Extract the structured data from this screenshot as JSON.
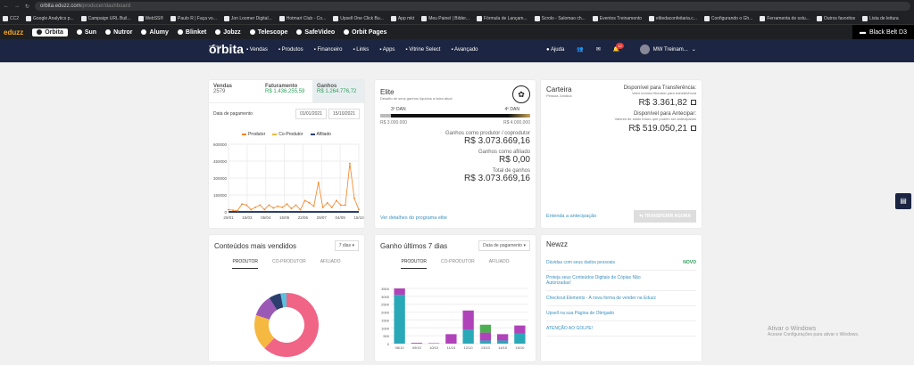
{
  "browser": {
    "url_host": "orbita.eduzz.com",
    "url_path": "/producer/dashboard"
  },
  "bookmarks": [
    "CC2",
    "Google Analytics p...",
    "Campaign URL Buil...",
    "WebSS®",
    "Paulo R | Faça vo...",
    "Jon Loomer Digital...",
    "Hotmart Club - Co...",
    "Upsell One Click Bu...",
    "App mkt",
    "Meu Painel | Bilder...",
    "Fórmula de Lançam...",
    "Scrolo - Salomao ch...",
    "Eventos Treinamento",
    "elitedaconfeitaria.c...",
    "Configurando o Gh...",
    "Ferramenta de solu...",
    "Outros favoritos",
    "Lista de leitura"
  ],
  "appbar": {
    "logo": "eduzz",
    "items": [
      "Órbita",
      "Sun",
      "Nutror",
      "Alumy",
      "Blinket",
      "Jobzz",
      "Telescope",
      "SafeVideo",
      "Orbit Pages"
    ],
    "right": "Black Belt D3"
  },
  "header": {
    "brand_small": "myEduzz",
    "brand": "órbita",
    "nav": [
      "Vendas",
      "Produtos",
      "Financeiro",
      "Links",
      "Apps",
      "Vitrine Select",
      "Avançado"
    ],
    "help": "Ajuda",
    "notif_count": "12",
    "user": "MW Treinam..."
  },
  "sales": {
    "tabs": [
      {
        "label": "Vendas",
        "value": "2579"
      },
      {
        "label": "Faturamento",
        "value": "R$ 1.436.255,59"
      },
      {
        "label": "Ganhos",
        "value": "R$ 1.264.776,72"
      }
    ],
    "date_label": "Data de pagamento",
    "date_from": "01/01/2021",
    "date_to": "15/10/2021"
  },
  "chart_data": {
    "type": "line",
    "series": [
      {
        "name": "Produtor",
        "values": [
          20,
          15,
          10,
          70,
          60,
          20,
          40,
          60,
          20,
          60,
          35,
          50,
          40,
          70,
          30,
          60,
          20,
          100,
          80,
          50,
          260,
          40,
          80,
          40,
          100,
          60,
          60,
          430,
          120,
          20
        ]
      },
      {
        "name": "Co-Produtor",
        "values": []
      },
      {
        "name": "Afiliado",
        "values": []
      }
    ],
    "x_ticks": [
      "20/01",
      "15/03",
      "05/04",
      "15/05",
      "22/06",
      "29/07",
      "04/09",
      "15/10"
    ],
    "y_ticks": [
      "0",
      "150000",
      "300000",
      "450000",
      "600000"
    ],
    "ylim": [
      0,
      600000
    ],
    "colors": {
      "Produtor": "#f58220",
      "Co-Produtor": "#f5b841",
      "Afiliado": "#2c3e6e"
    }
  },
  "elite": {
    "title": "Elite",
    "subtitle": "Desafio de seus ganhos líquidos a faixa atual",
    "left_tier": "3º DAN",
    "right_tier": "4º DAN",
    "left_value": "R$ 3.000.000",
    "right_value": "R$ 4.000.000",
    "progress": 0.07,
    "lines": [
      {
        "label": "Ganhos como produtor / coprodutor",
        "value": "R$ 3.073.669,16"
      },
      {
        "label": "Ganhos como afiliado",
        "value": "R$ 0,00"
      },
      {
        "label": "Total de ganhos",
        "value": "R$ 3.073.669,16"
      }
    ],
    "link": "Ver detalhes do programa elite"
  },
  "wallet": {
    "title": "Carteira",
    "subtitle": "Pessoa Jurídica",
    "transfer_label": "Disponível para Transferência:",
    "transfer_note": "Valor mínimo liberado para transferência",
    "transfer_value": "R$ 3.361,82",
    "advance_label": "Disponível para Antecipar:",
    "advance_note": "Valores de saldo futuro que podem ser antecipados",
    "advance_value": "R$ 519.050,21",
    "link": "Entenda a antecipação",
    "button": "TRANSFERIR AGORA"
  },
  "content": {
    "title": "Conteúdos mais vendidos",
    "select": "7 dias",
    "tabs": [
      "PRODUTOR",
      "CO-PRODUTOR",
      "AFILIADO"
    ]
  },
  "donut": {
    "slices": [
      {
        "value": 62,
        "color": "#f06486"
      },
      {
        "value": 18,
        "color": "#f5b841"
      },
      {
        "value": 11,
        "color": "#9b59b6"
      },
      {
        "value": 6,
        "color": "#2c3e6e"
      },
      {
        "value": 3,
        "color": "#5bc0de"
      }
    ]
  },
  "gains7": {
    "title": "Ganho últimos 7 dias",
    "select": "Data de pagamento",
    "tabs": [
      "PRODUTOR",
      "CO-PRODUTOR",
      "AFILIADO"
    ],
    "y_ticks": [
      "0",
      "500",
      "1000",
      "1500",
      "2000",
      "2500",
      "3000",
      "3500"
    ],
    "bars": [
      {
        "x": "08/10",
        "teal": 3100,
        "purple": 400
      },
      {
        "x": "09/10",
        "teal": 0,
        "purple": 50
      },
      {
        "x": "10/10",
        "teal": 0,
        "purple": 30
      },
      {
        "x": "11/10",
        "teal": 0,
        "purple": 600
      },
      {
        "x": "12/10",
        "teal": 900,
        "purple": 1200
      },
      {
        "x": "13/10",
        "teal": 200,
        "purple": 500,
        "green": 500
      },
      {
        "x": "14/10",
        "teal": 200,
        "purple": 400
      },
      {
        "x": "15/10",
        "teal": 650,
        "purple": 500
      }
    ]
  },
  "news": {
    "title": "Newzz",
    "items": [
      {
        "text": "Dúvidas com seus dados pessoais",
        "tag": "NOVO"
      },
      {
        "text": "Proteja seus Conteúdos Digitais de Cópias Não Autorizadas!",
        "tag": ""
      },
      {
        "text": "Checkout Elements - A nova forma de vender na Eduzz",
        "tag": ""
      },
      {
        "text": "Upsell na sua Página de Obrigado",
        "tag": ""
      },
      {
        "text": "ATENÇÃO AO GOLPE!",
        "tag": ""
      }
    ]
  },
  "watermark": {
    "title": "Ativar o Windows",
    "sub": "Acesse Configurações para ativar o Windows."
  }
}
